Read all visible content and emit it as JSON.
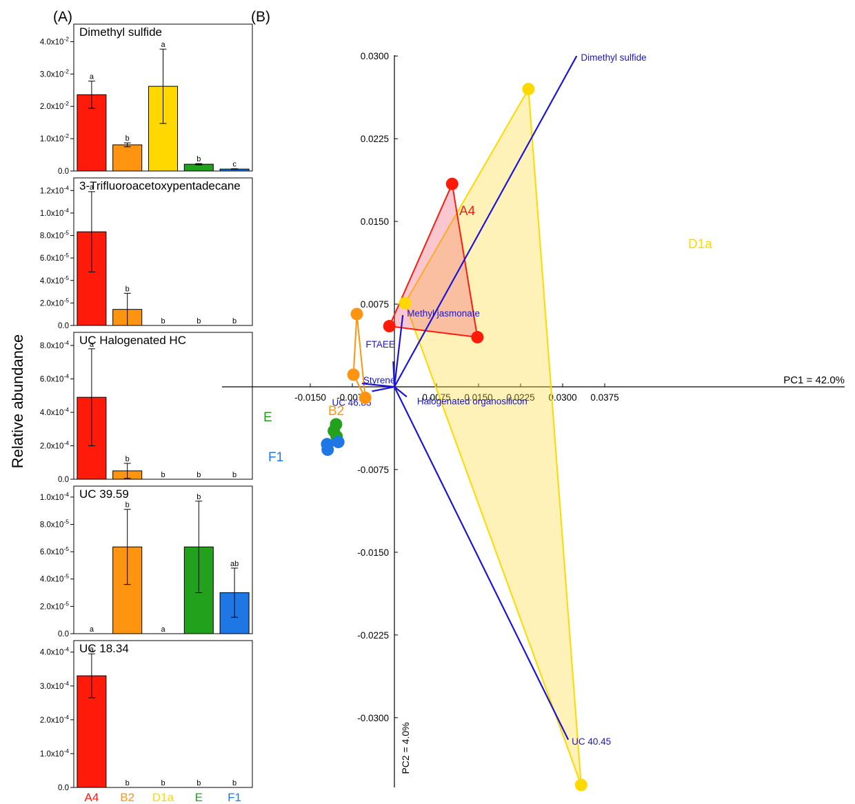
{
  "panel_labels": [
    "(A)",
    "(B)"
  ],
  "shared_ylabel": "Relative abundance",
  "group_colors": {
    "A4": "#ff1a0a",
    "B2": "#ff9410",
    "D1a": "#ffd800",
    "E": "#21a11c",
    "F1": "#1f77e6"
  },
  "loading_color": "#1a14d6",
  "chart_data": [
    {
      "type": "bar",
      "title": "Dimethyl sulfide",
      "categories": [
        "A4",
        "B2",
        "D1a",
        "E",
        "F1"
      ],
      "values": [
        0.0236,
        0.0081,
        0.0262,
        0.0021,
        0.0006
      ],
      "errors": [
        0.0042,
        0.0006,
        0.0115,
        0.0002,
        0.0001
      ],
      "letters": [
        "a",
        "b",
        "a",
        "b",
        "c"
      ],
      "ylim": [
        0,
        0.045
      ],
      "ticks": [
        0,
        0.01,
        0.02,
        0.03,
        0.04
      ],
      "tick_labels": [
        "0.0",
        "1.0x10-2",
        "2.0x10-2",
        "3.0x10-2",
        "4.0x10-2"
      ],
      "xlabel": "",
      "ylabel": ""
    },
    {
      "type": "bar",
      "title": "3-Trifluoroacetoxypentadecane",
      "categories": [
        "A4",
        "B2",
        "D1a",
        "E",
        "F1"
      ],
      "values": [
        8.33e-05,
        1.43e-05,
        0,
        0,
        0
      ],
      "errors": [
        3.57e-05,
        1.43e-05,
        0,
        0,
        0
      ],
      "letters": [
        "a",
        "b",
        "b",
        "b",
        "b"
      ],
      "ylim": [
        0,
        0.00013
      ],
      "ticks": [
        0,
        2e-05,
        4e-05,
        6e-05,
        8e-05,
        0.0001,
        0.00012
      ],
      "tick_labels": [
        "0.0",
        "2.0x10-5",
        "4.0x10-5",
        "6.0x10-5",
        "8.0x10-5",
        "1.0x10-4",
        "1.2x10-4"
      ],
      "xlabel": "",
      "ylabel": ""
    },
    {
      "type": "bar",
      "title": "UC Halogenated HC",
      "categories": [
        "A4",
        "B2",
        "D1a",
        "E",
        "F1"
      ],
      "values": [
        0.00049,
        5e-05,
        0,
        0,
        0
      ],
      "errors": [
        0.00029,
        4.5e-05,
        0,
        0,
        0
      ],
      "letters": [
        "a",
        "b",
        "b",
        "b",
        "b"
      ],
      "ylim": [
        0,
        0.00087
      ],
      "ticks": [
        0,
        0.0002,
        0.0004,
        0.0006,
        0.0008
      ],
      "tick_labels": [
        "0.0",
        "2.0x10-4",
        "4.0x10-4",
        "6.0x10-4",
        "8.0x10-4"
      ],
      "xlabel": "",
      "ylabel": ""
    },
    {
      "type": "bar",
      "title": "UC 39.59",
      "categories": [
        "A4",
        "B2",
        "D1a",
        "E",
        "F1"
      ],
      "values": [
        0,
        6.35e-05,
        0,
        6.35e-05,
        3e-05
      ],
      "errors": [
        0,
        2.75e-05,
        0,
        3.35e-05,
        1.8e-05
      ],
      "letters": [
        "a",
        "b",
        "a",
        "b",
        "ab"
      ],
      "ylim": [
        0,
        0.000107
      ],
      "ticks": [
        0,
        2e-05,
        4e-05,
        6e-05,
        8e-05,
        0.0001
      ],
      "tick_labels": [
        "0.0",
        "2.0x10-5",
        "4.0x10-5",
        "6.0x10-5",
        "8.0x10-5",
        "1.0x10-4"
      ],
      "xlabel": "",
      "ylabel": ""
    },
    {
      "type": "bar",
      "title": "UC 18.34",
      "categories": [
        "A4",
        "B2",
        "D1a",
        "E",
        "F1"
      ],
      "values": [
        0.00033,
        0,
        0,
        0,
        0
      ],
      "errors": [
        6.5e-05,
        0,
        0,
        0,
        0
      ],
      "letters": [
        "a",
        "b",
        "b",
        "b",
        "b"
      ],
      "ylim": [
        0,
        0.00043
      ],
      "ticks": [
        0,
        0.0001,
        0.0002,
        0.0003,
        0.0004
      ],
      "tick_labels": [
        "0.0",
        "1.0x10-4",
        "2.0x10-4",
        "3.0x10-4",
        "4.0x10-4"
      ],
      "xlabel": "",
      "ylabel": ""
    },
    {
      "type": "scatter",
      "title": "",
      "xlabel": "PC1 = 42.0%",
      "ylabel": "PC2 = 4.0%",
      "xlim": [
        -0.0185,
        0.0415
      ],
      "ylim": [
        -0.0362,
        0.0312
      ],
      "xticks": [
        -0.015,
        -0.0075,
        0.0075,
        0.015,
        0.0225,
        0.03,
        0.0375
      ],
      "xtick_labels": [
        "-0.0150",
        "-0.0075",
        "0.0075",
        "0.0150",
        "0.0225",
        "0.0300",
        "0.0375"
      ],
      "yticks": [
        0.03,
        0.0225,
        0.015,
        0.0075,
        -0.0075,
        -0.015,
        -0.0225,
        -0.03
      ],
      "ytick_labels": [
        "0.0300",
        "0.0225",
        "0.0150",
        "0.0075",
        "-0.0075",
        "-0.0150",
        "-0.0225",
        "-0.0300"
      ],
      "groups": [
        {
          "name": "A4",
          "points": [
            [
              -0.0009,
              0.0055
            ],
            [
              0.0103,
              0.0184
            ],
            [
              0.0148,
              0.0045
            ]
          ]
        },
        {
          "name": "D1a",
          "points": [
            [
              0.0019,
              0.0076
            ],
            [
              0.0239,
              0.027
            ],
            [
              0.0333,
              -0.0361
            ]
          ]
        },
        {
          "name": "B2",
          "points": [
            [
              -0.0067,
              0.0066
            ],
            [
              -0.0073,
              0.0011
            ],
            [
              -0.0052,
              -0.001
            ]
          ]
        },
        {
          "name": "E",
          "points": [
            [
              -0.0104,
              -0.0034
            ],
            [
              -0.0108,
              -0.004
            ],
            [
              -0.0103,
              -0.0045
            ]
          ]
        },
        {
          "name": "F1",
          "points": [
            [
              -0.012,
              -0.0052
            ],
            [
              -0.01,
              -0.005
            ],
            [
              -0.0119,
              -0.0057
            ]
          ]
        }
      ],
      "loadings": [
        {
          "name": "Dimethyl sulfide",
          "x": 0.0325,
          "y": 0.03
        },
        {
          "name": "Methyl jasmonate",
          "x": 0.0015,
          "y": 0.0065
        },
        {
          "name": "FTAEE",
          "x": -0.0002,
          "y": 0.0023
        },
        {
          "name": "Styrene",
          "x": -0.0058,
          "y": 0.0003
        },
        {
          "name": "UC 46.85",
          "x": -0.004,
          "y": -0.0004
        },
        {
          "name": "Halogenated organosilicon",
          "x": 0.0022,
          "y": -0.0009
        },
        {
          "name": "UC 40.45",
          "x": 0.031,
          "y": -0.032
        }
      ]
    }
  ]
}
